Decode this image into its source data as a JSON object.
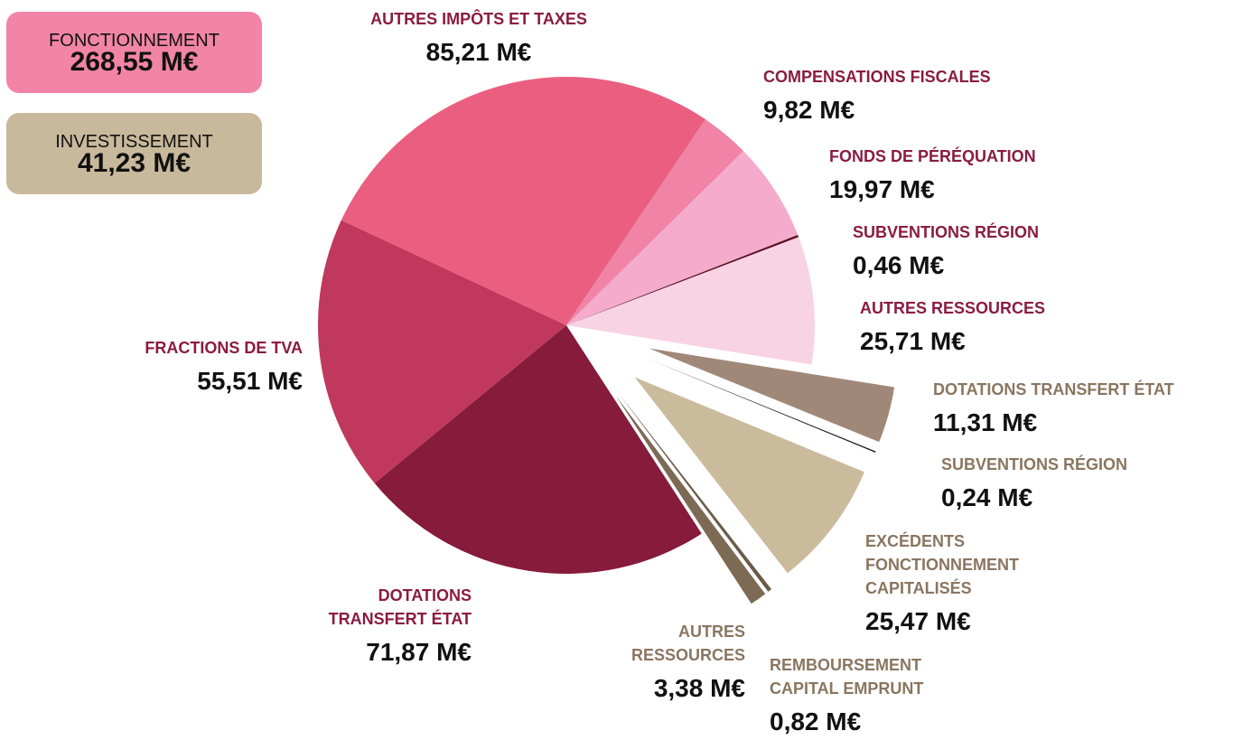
{
  "chart_data": {
    "type": "pie",
    "series": [
      {
        "name": "FONCTIONNEMENT",
        "total": 268.55,
        "total_label": "268,55 M€",
        "color": "#f285a7",
        "label_color": "#8a1c40",
        "categories": [
          "DOTATIONS TRANSFERT ÉTAT",
          "FRACTIONS DE TVA",
          "AUTRES IMPÔTS ET TAXES",
          "COMPENSATIONS FISCALES",
          "FONDS DE PÉRÉQUATION",
          "SUBVENTIONS RÉGION",
          "AUTRES RESSOURCES"
        ],
        "values": [
          71.87,
          55.51,
          85.21,
          9.82,
          19.97,
          0.46,
          25.71
        ],
        "value_labels": [
          "71,87 M€",
          "55,51 M€",
          "85,21 M€",
          "9,82 M€",
          "19,97 M€",
          "0,46 M€",
          "25,71 M€"
        ],
        "colors": [
          "#861b3b",
          "#c0385d",
          "#ea5f80",
          "#f083a6",
          "#f5abcc",
          "#5a1020",
          "#f8d3e4"
        ]
      },
      {
        "name": "INVESTISSEMENT",
        "total": 41.23,
        "total_label": "41,23 M€",
        "color": "#c9b99c",
        "label_color": "#8a7560",
        "exploded": true,
        "categories": [
          "DOTATIONS TRANSFERT ÉTAT",
          "SUBVENTIONS RÉGION",
          "EXCÉDENTS FONCTIONNEMENT CAPITALISÉS",
          "REMBOURSEMENT CAPITAL EMPRUNT",
          "AUTRES RESSOURCES"
        ],
        "values": [
          11.31,
          0.24,
          25.47,
          0.82,
          3.38
        ],
        "value_labels": [
          "11,31 M€",
          "0,24 M€",
          "25,47 M€",
          "0,82 M€",
          "3,38 M€"
        ],
        "colors": [
          "#a08878",
          "#111111",
          "#cbbb9d",
          "#6b5a48",
          "#7d6a54"
        ]
      }
    ]
  }
}
